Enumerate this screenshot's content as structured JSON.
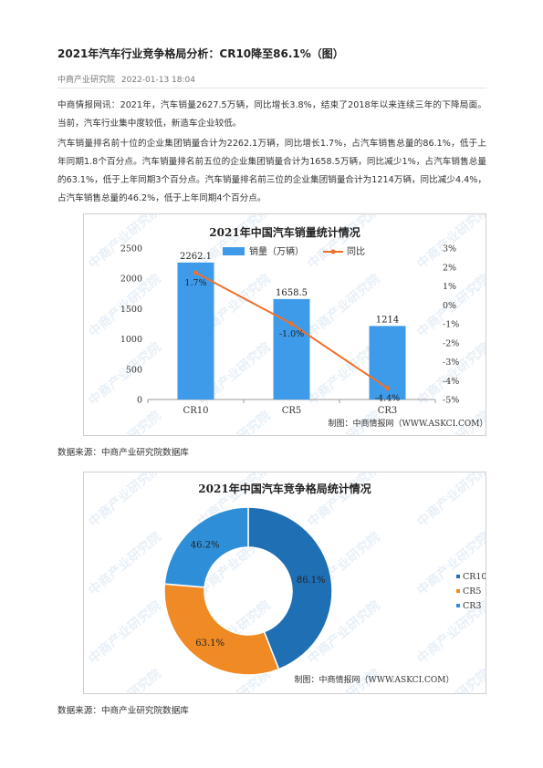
{
  "article": {
    "title": "2021年汽车行业竞争格局分析：CR10降至86.1%（图）",
    "source": "中商产业研究院",
    "datetime": "2022-01-13 18:04",
    "paragraphs": [
      "中商情报网讯：2021年，汽车销量2627.5万辆，同比增长3.8%，结束了2018年以来连续三年的下降局面。当前，汽车行业集中度较低，新造车企业较低。",
      "汽车销量排名前十位的企业集团销量合计为2262.1万辆，同比增长1.7%，占汽车销售总量的86.1%，低于上年同期1.8个百分点。汽车销量排名前五位的企业集团销量合计为1658.5万辆，同比减少1%，占汽车销售总量的63.1%，低于上年同期3个百分点。汽车销量排名前三位的企业集团销量合计为1214万辆，同比减少4.4%，占汽车销售总量的46.2%，低于上年同期4个百分点。"
    ],
    "data_source_1": "数据来源：中商产业研究院数据库",
    "data_source_2": "数据来源：中商产业研究院数据库"
  },
  "watermark": "中商产业研究院",
  "colors": {
    "bar": "#3e9bea",
    "line": "#f0702a",
    "cr10": "#1f6fb5",
    "cr5": "#f08a24",
    "cr3": "#2e8fd8"
  },
  "chart_data": [
    {
      "type": "bar",
      "title": "2021年中国汽车销量统计情况",
      "categories": [
        "CR10",
        "CR5",
        "CR3"
      ],
      "series": [
        {
          "name": "销量（万辆）",
          "values": [
            2262.1,
            1658.5,
            1214
          ],
          "axis": "left"
        },
        {
          "name": "同比",
          "type": "line",
          "values": [
            1.7,
            -1.0,
            -4.4
          ],
          "axis": "right"
        }
      ],
      "bar_labels": [
        "2262.1",
        "1658.5",
        "1214"
      ],
      "line_labels": [
        "1.7%",
        "-1.0%",
        "-4.4%"
      ],
      "ylim": [
        0,
        2500
      ],
      "yticks": [
        "0",
        "500",
        "1000",
        "1500",
        "2000",
        "2500"
      ],
      "y2lim": [
        -5,
        3
      ],
      "y2ticks": [
        "3%",
        "2%",
        "1%",
        "0%",
        "-1%",
        "-2%",
        "-3%",
        "-4%",
        "-5%"
      ],
      "credit": "制图：中商情报网（WWW.ASKCI.COM）",
      "legend_position": "top"
    },
    {
      "type": "pie",
      "title": "2021年中国汽车竞争格局统计情况",
      "labels": [
        "CR10",
        "CR5",
        "CR3"
      ],
      "values": [
        86.1,
        63.1,
        46.2
      ],
      "value_labels": [
        "86.1%",
        "63.1%",
        "46.2%"
      ],
      "credit": "制图：中商情报网（WWW.ASKCI.COM）",
      "legend_position": "right"
    }
  ]
}
